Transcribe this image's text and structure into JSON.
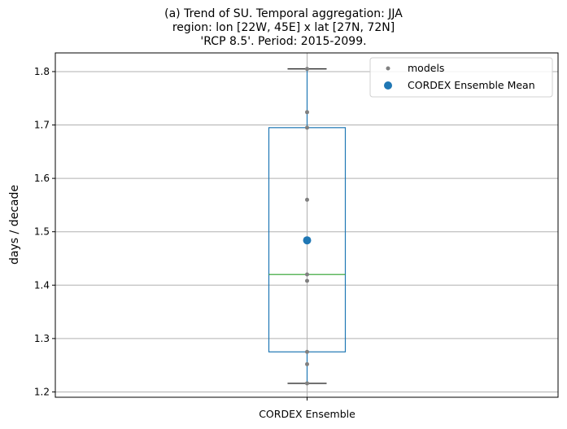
{
  "chart_data": {
    "type": "box",
    "title_lines": [
      "(a) Trend of SU. Temporal aggregation: JJA",
      "region: lon [22W, 45E] x lat [27N, 72N]",
      "'RCP 8.5'. Period: 2015-2099."
    ],
    "ylabel": "days / decade",
    "xlabel": "",
    "categories": [
      "CORDEX Ensemble"
    ],
    "ylim": [
      1.19,
      1.835
    ],
    "yticks": [
      1.2,
      1.3,
      1.4,
      1.5,
      1.6,
      1.7,
      1.8
    ],
    "ytick_labels": [
      "1.2",
      "1.3",
      "1.4",
      "1.5",
      "1.6",
      "1.7",
      "1.8"
    ],
    "grid": true,
    "legend_position": "top-right",
    "box": {
      "whisker_low": 1.216,
      "q1": 1.275,
      "median": 1.42,
      "q3": 1.695,
      "whisker_high": 1.805
    },
    "models": {
      "name": "models",
      "values": [
        1.805,
        1.724,
        1.695,
        1.56,
        1.42,
        1.408,
        1.275,
        1.252,
        1.216
      ]
    },
    "ensemble_mean": {
      "name": "CORDEX Ensemble Mean",
      "value": 1.484
    },
    "colors": {
      "box": "#1f77b4",
      "median": "#2ca02c",
      "models": "#808080",
      "mean": "#1f77b4",
      "grid": "#b0b0b0",
      "caps": "#000000"
    }
  }
}
